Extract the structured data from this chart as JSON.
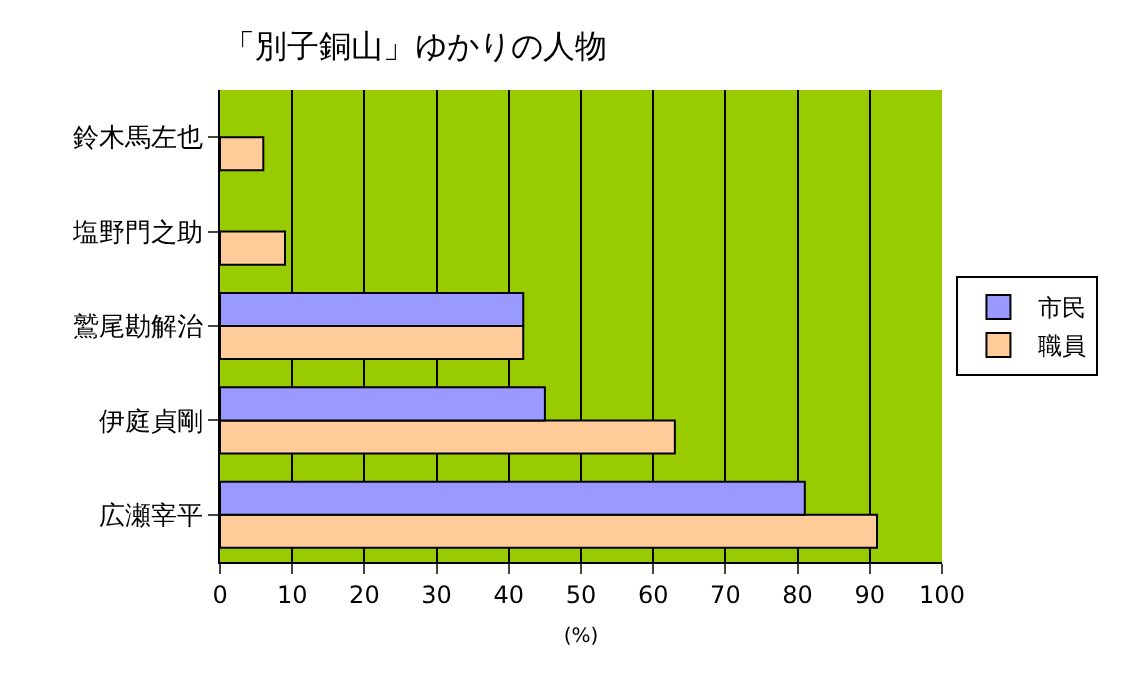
{
  "chart_data": {
    "type": "bar",
    "orientation": "horizontal",
    "title": "「別子銅山」ゆかりの人物",
    "xlabel": "(%)",
    "categories": [
      "鈴木馬左也",
      "塩野門之助",
      "鷲尾勘解治",
      "伊庭貞剛",
      "広瀬宰平"
    ],
    "series": [
      {
        "name": "市民",
        "color": "#9999ff",
        "values": [
          null,
          null,
          42,
          45,
          81
        ]
      },
      {
        "name": "職員",
        "color": "#ffcc99",
        "values": [
          6,
          9,
          42,
          63,
          91
        ]
      }
    ],
    "xlim": [
      0,
      100
    ],
    "xticks": [
      0,
      10,
      20,
      30,
      40,
      50,
      60,
      70,
      80,
      90,
      100
    ],
    "grid": "x",
    "legend": "right"
  }
}
